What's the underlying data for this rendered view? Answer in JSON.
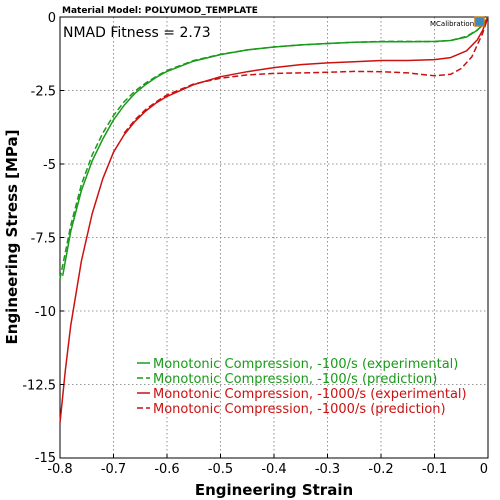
{
  "header": {
    "model_title": "Material Model: POLYUMOD_TEMPLATE",
    "fitness_text": "NMAD Fitness = 2.73",
    "brand": "MCalibration"
  },
  "chart_data": {
    "type": "line",
    "xlabel": "Engineering Strain",
    "ylabel": "Engineering Stress [MPa]",
    "xlim": [
      -0.8,
      0
    ],
    "ylim": [
      -15,
      0
    ],
    "xticks": [
      -0.8,
      -0.7,
      -0.6,
      -0.5,
      -0.4,
      -0.3,
      -0.2,
      -0.1,
      0
    ],
    "xtick_labels": [
      "-0.8",
      "-0.7",
      "-0.6",
      "-0.5",
      "-0.4",
      "-0.3",
      "-0.2",
      "-0.1",
      "0"
    ],
    "yticks": [
      0,
      -2.5,
      -5,
      -7.5,
      -10,
      -12.5,
      -15
    ],
    "ytick_labels": [
      "0",
      "-2.5",
      "-5",
      "-7.5",
      "-10",
      "-12.5",
      "-15"
    ],
    "grid": true,
    "legend_position": "bottom-right",
    "series": [
      {
        "name": "Monotonic Compression, -100/s (experimental)",
        "color": "#1a9a1a",
        "style": "solid",
        "x": [
          -0.795,
          -0.78,
          -0.76,
          -0.74,
          -0.72,
          -0.7,
          -0.68,
          -0.66,
          -0.64,
          -0.62,
          -0.6,
          -0.55,
          -0.5,
          -0.45,
          -0.4,
          -0.35,
          -0.3,
          -0.25,
          -0.2,
          -0.15,
          -0.1,
          -0.07,
          -0.04,
          -0.02,
          -0.01,
          0
        ],
        "y": [
          -8.8,
          -7.3,
          -5.9,
          -4.9,
          -4.15,
          -3.5,
          -3.0,
          -2.6,
          -2.3,
          -2.05,
          -1.85,
          -1.5,
          -1.28,
          -1.12,
          -1.02,
          -0.95,
          -0.9,
          -0.86,
          -0.84,
          -0.84,
          -0.83,
          -0.8,
          -0.68,
          -0.45,
          -0.28,
          0
        ]
      },
      {
        "name": "Monotonic Compression, -100/s (prediction)",
        "color": "#1a9a1a",
        "style": "dashed",
        "x": [
          -0.8,
          -0.78,
          -0.76,
          -0.74,
          -0.72,
          -0.7,
          -0.68,
          -0.66,
          -0.64,
          -0.62,
          -0.6,
          -0.55,
          -0.5,
          -0.45,
          -0.4,
          -0.35,
          -0.3,
          -0.25,
          -0.2,
          -0.15,
          -0.1,
          -0.07,
          -0.04,
          -0.02,
          -0.01,
          0
        ],
        "y": [
          -8.9,
          -7.1,
          -5.7,
          -4.7,
          -3.95,
          -3.35,
          -2.88,
          -2.52,
          -2.25,
          -2.02,
          -1.82,
          -1.48,
          -1.27,
          -1.12,
          -1.02,
          -0.95,
          -0.9,
          -0.86,
          -0.83,
          -0.83,
          -0.84,
          -0.8,
          -0.66,
          -0.44,
          -0.27,
          0
        ]
      },
      {
        "name": "Monotonic Compression, -1000/s (experimental)",
        "color": "#cc1111",
        "style": "solid",
        "x": [
          -0.8,
          -0.79,
          -0.78,
          -0.76,
          -0.74,
          -0.72,
          -0.7,
          -0.68,
          -0.66,
          -0.64,
          -0.62,
          -0.6,
          -0.55,
          -0.5,
          -0.45,
          -0.4,
          -0.35,
          -0.3,
          -0.25,
          -0.2,
          -0.15,
          -0.1,
          -0.07,
          -0.04,
          -0.02,
          -0.01,
          0
        ],
        "y": [
          -13.8,
          -12.0,
          -10.5,
          -8.3,
          -6.7,
          -5.5,
          -4.6,
          -4.0,
          -3.55,
          -3.2,
          -2.92,
          -2.7,
          -2.3,
          -2.03,
          -1.86,
          -1.72,
          -1.62,
          -1.56,
          -1.52,
          -1.48,
          -1.48,
          -1.45,
          -1.38,
          -1.15,
          -0.78,
          -0.45,
          0
        ]
      },
      {
        "name": "Monotonic Compression, -1000/s (prediction)",
        "color": "#cc1111",
        "style": "dashed",
        "x": [
          -0.68,
          -0.66,
          -0.64,
          -0.62,
          -0.6,
          -0.55,
          -0.5,
          -0.45,
          -0.4,
          -0.35,
          -0.3,
          -0.25,
          -0.2,
          -0.15,
          -0.1,
          -0.07,
          -0.05,
          -0.03,
          -0.02,
          -0.01,
          0
        ],
        "y": [
          -3.95,
          -3.5,
          -3.15,
          -2.88,
          -2.65,
          -2.28,
          -2.08,
          -1.97,
          -1.92,
          -1.9,
          -1.88,
          -1.85,
          -1.86,
          -1.9,
          -2.0,
          -1.95,
          -1.75,
          -1.35,
          -0.95,
          -0.55,
          0
        ]
      }
    ]
  }
}
